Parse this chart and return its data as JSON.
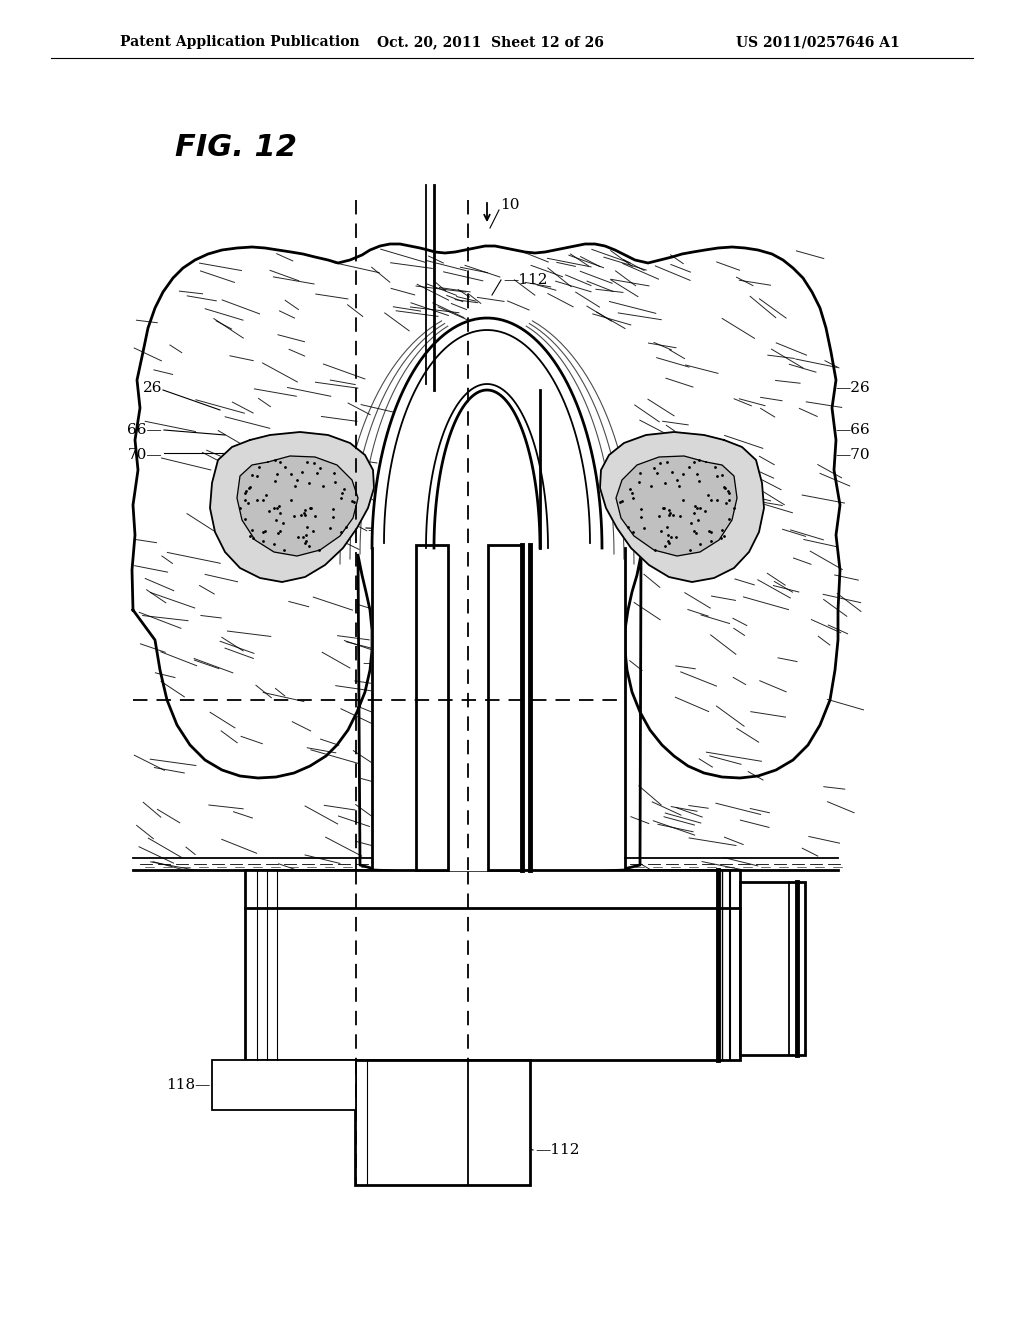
{
  "header_left": "Patent Application Publication",
  "header_center": "Oct. 20, 2011  Sheet 12 of 26",
  "header_right": "US 2011/0257646 A1",
  "fig_title": "FIG. 12",
  "bg_color": "#ffffff"
}
